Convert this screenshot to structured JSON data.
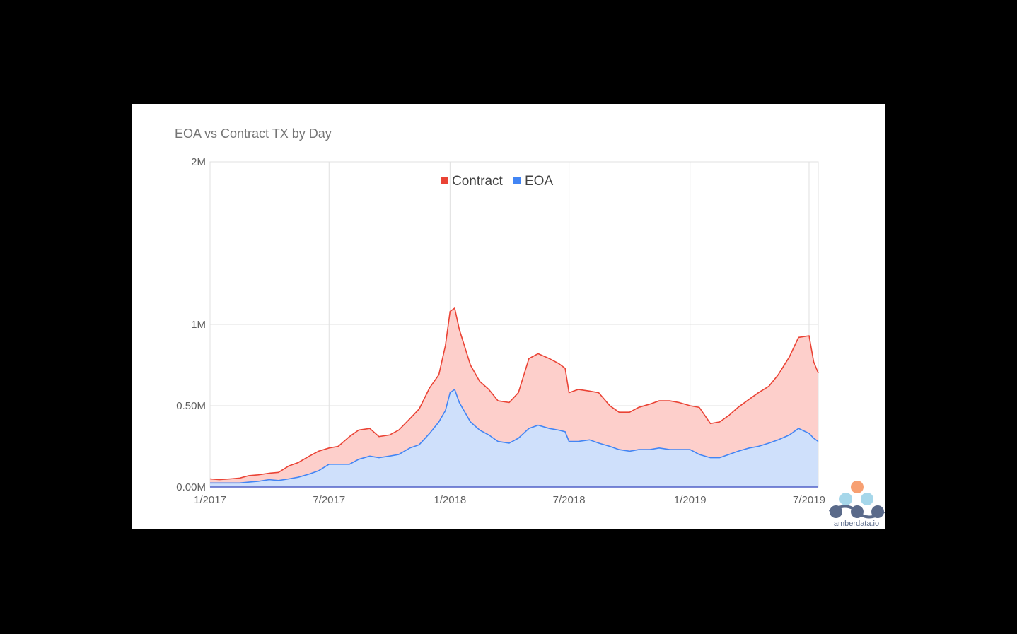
{
  "chart_data": {
    "type": "area",
    "stacked": true,
    "title": "EOA vs Contract TX by Day",
    "xlabel": "",
    "ylabel": "",
    "x_range": [
      "2017-01-01",
      "2019-07-15"
    ],
    "ylim": [
      0,
      2000000
    ],
    "y_ticks": [
      {
        "value": 0,
        "label": "0.00M"
      },
      {
        "value": 500000,
        "label": "0.50M"
      },
      {
        "value": 1000000,
        "label": "1M"
      },
      {
        "value": 2000000,
        "label": "2M"
      }
    ],
    "x_ticks": [
      {
        "date": "2017-01-01",
        "label": "1/2017"
      },
      {
        "date": "2017-07-01",
        "label": "7/2017"
      },
      {
        "date": "2018-01-01",
        "label": "1/2018"
      },
      {
        "date": "2018-07-01",
        "label": "7/2018"
      },
      {
        "date": "2019-01-01",
        "label": "1/2019"
      },
      {
        "date": "2019-07-01",
        "label": "7/2019"
      }
    ],
    "grid": true,
    "legend_position": "top-center",
    "x": [
      "2017-01-01",
      "2017-01-15",
      "2017-02-01",
      "2017-02-15",
      "2017-03-01",
      "2017-03-15",
      "2017-04-01",
      "2017-04-15",
      "2017-05-01",
      "2017-05-15",
      "2017-06-01",
      "2017-06-15",
      "2017-07-01",
      "2017-07-15",
      "2017-08-01",
      "2017-08-15",
      "2017-09-01",
      "2017-09-15",
      "2017-10-01",
      "2017-10-15",
      "2017-11-01",
      "2017-11-15",
      "2017-12-01",
      "2017-12-15",
      "2017-12-25",
      "2018-01-01",
      "2018-01-08",
      "2018-01-15",
      "2018-02-01",
      "2018-02-15",
      "2018-03-01",
      "2018-03-15",
      "2018-04-01",
      "2018-04-15",
      "2018-05-01",
      "2018-05-15",
      "2018-06-01",
      "2018-06-15",
      "2018-06-25",
      "2018-07-01",
      "2018-07-15",
      "2018-08-01",
      "2018-08-15",
      "2018-09-01",
      "2018-09-15",
      "2018-10-01",
      "2018-10-15",
      "2018-11-01",
      "2018-11-15",
      "2018-12-01",
      "2018-12-15",
      "2019-01-01",
      "2019-01-15",
      "2019-02-01",
      "2019-02-15",
      "2019-03-01",
      "2019-03-15",
      "2019-04-01",
      "2019-04-15",
      "2019-05-01",
      "2019-05-15",
      "2019-06-01",
      "2019-06-15",
      "2019-07-01",
      "2019-07-08",
      "2019-07-15"
    ],
    "series": [
      {
        "name": "Contract",
        "values": [
          25000,
          20000,
          25000,
          30000,
          40000,
          40000,
          40000,
          50000,
          80000,
          90000,
          110000,
          120000,
          100000,
          110000,
          170000,
          180000,
          170000,
          130000,
          130000,
          150000,
          180000,
          220000,
          280000,
          290000,
          400000,
          500000,
          500000,
          450000,
          350000,
          300000,
          280000,
          250000,
          250000,
          280000,
          430000,
          440000,
          430000,
          410000,
          390000,
          300000,
          320000,
          300000,
          310000,
          250000,
          230000,
          240000,
          260000,
          280000,
          290000,
          300000,
          290000,
          270000,
          290000,
          210000,
          220000,
          240000,
          270000,
          300000,
          330000,
          350000,
          400000,
          480000,
          560000,
          600000,
          470000,
          420000
        ],
        "color": "#ea4335"
      },
      {
        "name": "EOA",
        "values": [
          25000,
          25000,
          25000,
          25000,
          30000,
          35000,
          45000,
          40000,
          50000,
          60000,
          80000,
          100000,
          140000,
          140000,
          140000,
          170000,
          190000,
          180000,
          190000,
          200000,
          240000,
          260000,
          330000,
          400000,
          470000,
          580000,
          600000,
          520000,
          400000,
          350000,
          320000,
          280000,
          270000,
          300000,
          360000,
          380000,
          360000,
          350000,
          340000,
          280000,
          280000,
          290000,
          270000,
          250000,
          230000,
          220000,
          230000,
          230000,
          240000,
          230000,
          230000,
          230000,
          200000,
          180000,
          180000,
          200000,
          220000,
          240000,
          250000,
          270000,
          290000,
          320000,
          360000,
          330000,
          300000,
          280000
        ],
        "color": "#4285f4"
      }
    ]
  },
  "legend": {
    "contract_label": "Contract",
    "eoa_label": "EOA",
    "contract_color": "#ea4335",
    "eoa_color": "#4285f4"
  },
  "logo": {
    "text": "amberdata.io",
    "icon": "amberdata-logo-icon",
    "colors": {
      "top": "#f7a072",
      "middle": "#a6d7ea",
      "bottom": "#5a6a8a"
    }
  }
}
